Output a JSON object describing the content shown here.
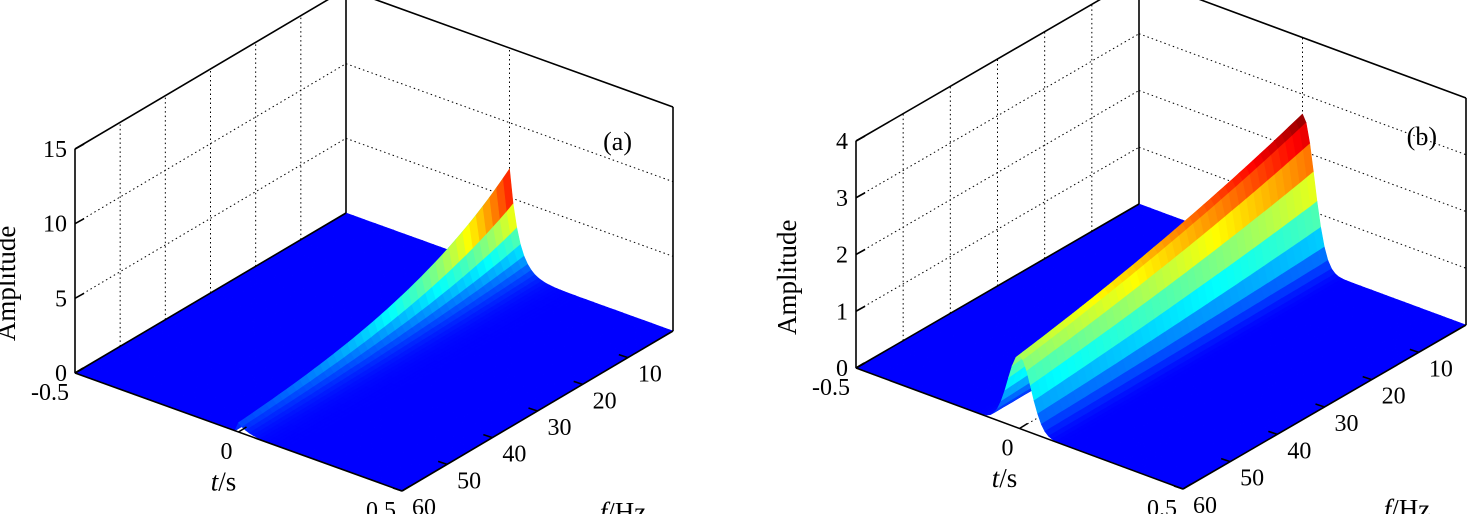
{
  "chart_data": [
    {
      "type": "surface",
      "panel_label": "(a)",
      "xlabel_var": "t",
      "xlabel_unit": "/s",
      "ylabel_var": "f",
      "ylabel_unit": "/Hz",
      "zlabel": "Amplitude",
      "xlim": [
        -0.5,
        0.5
      ],
      "ylim": [
        0,
        60
      ],
      "zlim": [
        0,
        15
      ],
      "xticks": [
        -0.5,
        0,
        0.5
      ],
      "yticks": [
        10,
        20,
        30,
        40,
        50,
        60
      ],
      "zticks": [
        0,
        5,
        10,
        15
      ],
      "xtick_labels": [
        "-0.5",
        "0",
        "0.5"
      ],
      "ytick_labels": [
        "10",
        "20",
        "30",
        "40",
        "50",
        "60"
      ],
      "ztick_labels": [
        "0",
        "5",
        "10",
        "15"
      ],
      "surface": {
        "peak": 6.9,
        "onset_t": 0.0,
        "decay_t": 0.028,
        "freq_decay": 0.04
      },
      "colormap": [
        "#0000ff",
        "#0080ff",
        "#00ffff",
        "#80ff80",
        "#ffff00",
        "#ff8000",
        "#ff0000",
        "#800000"
      ]
    },
    {
      "type": "surface",
      "panel_label": "(b)",
      "xlabel_var": "t",
      "xlabel_unit": "/s",
      "ylabel_var": "f",
      "ylabel_unit": "/Hz",
      "zlabel": "Amplitude",
      "xlim": [
        -0.5,
        0.5
      ],
      "ylim": [
        0,
        60
      ],
      "zlim": [
        0,
        4
      ],
      "xticks": [
        -0.5,
        0,
        0.5
      ],
      "yticks": [
        10,
        20,
        30,
        40,
        50,
        60
      ],
      "zticks": [
        0,
        1,
        2,
        3,
        4
      ],
      "xtick_labels": [
        "-0.5",
        "0",
        "0.5"
      ],
      "ytick_labels": [
        "10",
        "20",
        "30",
        "40",
        "50",
        "60"
      ],
      "ztick_labels": [
        "0",
        "1",
        "2",
        "3",
        "4"
      ],
      "surface": {
        "peak": 2.65,
        "center_t": 0.0,
        "width_t": 0.05,
        "freq_decay": 0.012
      },
      "colormap": [
        "#0000ff",
        "#0080ff",
        "#00ffff",
        "#80ff80",
        "#ffff00",
        "#ff8000",
        "#ff0000",
        "#800000"
      ]
    }
  ]
}
